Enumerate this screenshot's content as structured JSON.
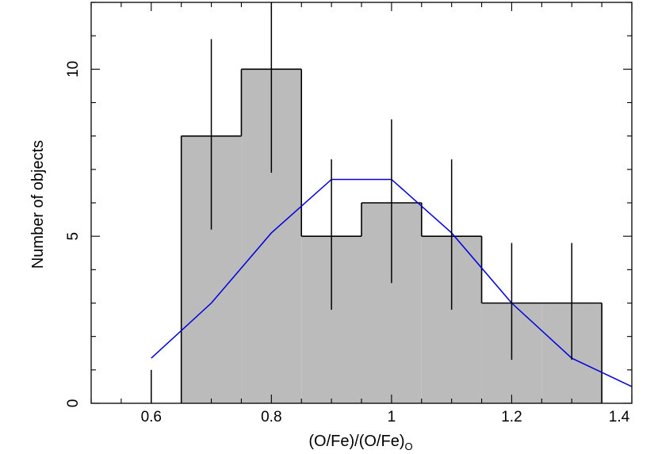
{
  "chart_data": {
    "type": "bar",
    "title": "",
    "xlabel": {
      "main_a": "(O/Fe)/(O/Fe)",
      "sub": "O"
    },
    "ylabel": "Number of objects",
    "xlim": [
      0.5,
      1.4
    ],
    "ylim": [
      0,
      12
    ],
    "x_ticks": [
      {
        "value": 0.6,
        "label": "0.6"
      },
      {
        "value": 0.8,
        "label": "0.8"
      },
      {
        "value": 1.0,
        "label": "1"
      },
      {
        "value": 1.2,
        "label": "1.2"
      },
      {
        "value": 1.4,
        "label": "1.4"
      }
    ],
    "y_ticks": [
      {
        "value": 0,
        "label": "0"
      },
      {
        "value": 5,
        "label": "5"
      },
      {
        "value": 10,
        "label": "10"
      }
    ],
    "histogram": {
      "bin_edges": [
        0.55,
        0.65,
        0.75,
        0.85,
        0.95,
        1.05,
        1.15,
        1.25,
        1.35
      ],
      "counts": [
        0,
        8,
        10,
        5,
        6,
        5,
        3,
        3
      ],
      "fill": "#bbbbbb",
      "edge": "#000000"
    },
    "error_bars": [
      {
        "x": 0.6,
        "low": 0,
        "high": 1.0
      },
      {
        "x": 0.7,
        "low": 5.2,
        "high": 10.9
      },
      {
        "x": 0.8,
        "low": 6.9,
        "high": 12.0
      },
      {
        "x": 0.9,
        "low": 2.8,
        "high": 7.3
      },
      {
        "x": 1.0,
        "low": 3.6,
        "high": 8.5
      },
      {
        "x": 1.1,
        "low": 2.8,
        "high": 7.3
      },
      {
        "x": 1.2,
        "low": 1.3,
        "high": 4.8
      },
      {
        "x": 1.3,
        "low": 1.3,
        "high": 4.8
      }
    ],
    "model_curve": {
      "color": "#0000dd",
      "x": [
        0.6,
        0.7,
        0.8,
        0.9,
        1.0,
        1.1,
        1.2,
        1.3,
        1.4
      ],
      "y": [
        1.35,
        3.0,
        5.1,
        6.7,
        6.7,
        5.1,
        3.0,
        1.35,
        0.5
      ]
    }
  }
}
